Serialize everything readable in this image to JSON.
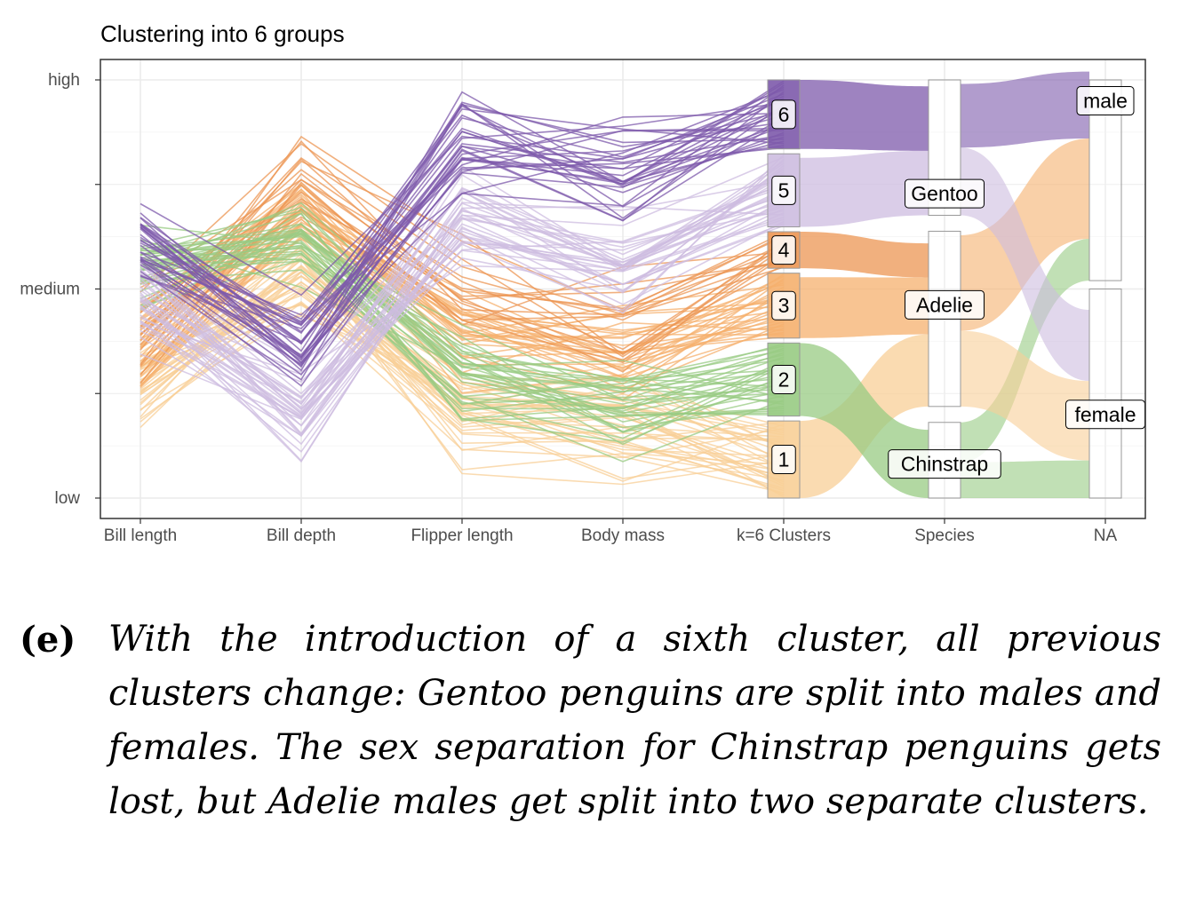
{
  "chart_data": {
    "type": "parallel-sets",
    "title": "Clustering into 6 groups",
    "axes": [
      "Bill length",
      "Bill depth",
      "Flipper length",
      "Body mass",
      "k=6 Clusters",
      "Species",
      "NA"
    ],
    "y_ticks": [
      "high",
      "medium",
      "low"
    ],
    "colors": {
      "c1": "#f8cf97",
      "c2": "#98cb83",
      "c3": "#f5b06e",
      "c4": "#ec9653",
      "c5": "#cdbce0",
      "c6": "#7d5aab"
    },
    "clusters": [
      {
        "label": "1",
        "color": "c1",
        "size": 0.19
      },
      {
        "label": "2",
        "color": "c2",
        "size": 0.18
      },
      {
        "label": "3",
        "color": "c3",
        "size": 0.16
      },
      {
        "label": "4",
        "color": "c4",
        "size": 0.09
      },
      {
        "label": "5",
        "color": "c5",
        "size": 0.18
      },
      {
        "label": "6",
        "color": "c6",
        "size": 0.17
      }
    ],
    "species": [
      {
        "label": "Chinstrap",
        "size": 0.19
      },
      {
        "label": "Adelie",
        "size": 0.44
      },
      {
        "label": "Gentoo",
        "size": 0.34
      }
    ],
    "sex": [
      {
        "label": "female",
        "size": 0.5
      },
      {
        "label": "male",
        "size": 0.48
      }
    ],
    "flows_cluster_species": [
      {
        "cluster": "1",
        "species": "Adelie",
        "size": 0.19
      },
      {
        "cluster": "2",
        "species": "Chinstrap",
        "size": 0.18
      },
      {
        "cluster": "3",
        "species": "Adelie",
        "size": 0.15
      },
      {
        "cluster": "4",
        "species": "Adelie",
        "size": 0.09
      },
      {
        "cluster": "5",
        "species": "Gentoo",
        "size": 0.17
      },
      {
        "cluster": "6",
        "species": "Gentoo",
        "size": 0.17
      }
    ],
    "flows_species_sex": [
      {
        "species": "Chinstrap",
        "sex": "female",
        "color": "c2",
        "size": 0.09
      },
      {
        "species": "Chinstrap",
        "sex": "male",
        "color": "c2",
        "size": 0.1
      },
      {
        "species": "Adelie",
        "sex": "female",
        "color": "c1",
        "size": 0.19
      },
      {
        "species": "Adelie",
        "sex": "male",
        "color": "c3",
        "size": 0.24
      },
      {
        "species": "Gentoo",
        "sex": "female",
        "color": "c5",
        "size": 0.17
      },
      {
        "species": "Gentoo",
        "sex": "male",
        "color": "c6",
        "size": 0.16
      }
    ],
    "profiles": [
      {
        "cluster": "1",
        "values": [
          0.28,
          0.52,
          0.2,
          0.18
        ]
      },
      {
        "cluster": "2",
        "values": [
          0.55,
          0.6,
          0.28,
          0.22
        ]
      },
      {
        "cluster": "3",
        "values": [
          0.36,
          0.7,
          0.38,
          0.33
        ]
      },
      {
        "cluster": "4",
        "values": [
          0.42,
          0.76,
          0.5,
          0.42
        ]
      },
      {
        "cluster": "5",
        "values": [
          0.48,
          0.2,
          0.66,
          0.55
        ]
      },
      {
        "cluster": "6",
        "values": [
          0.62,
          0.38,
          0.84,
          0.78
        ]
      }
    ]
  },
  "caption": {
    "label": "(e)",
    "text": "With the introduction of a sixth cluster, all previous clusters change: Gentoo penguins are split into males and females.  The sex separation for Chinstrap penguins gets lost, but Adelie males get split into two separate clusters."
  }
}
